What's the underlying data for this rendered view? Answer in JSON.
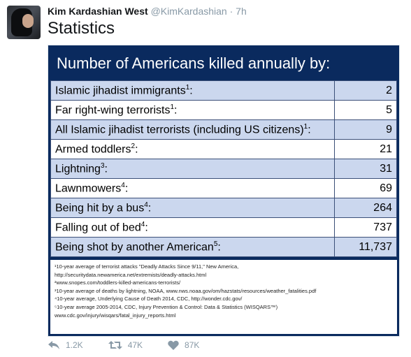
{
  "tweet": {
    "author_name": "Kim Kardashian West",
    "author_handle": "@KimKardashian",
    "separator": "·",
    "time": "7h",
    "text": "Statistics"
  },
  "image": {
    "title": "Number of Americans killed annually by:",
    "rows": [
      {
        "label": "Islamic jihadist immigrants",
        "sup": "1",
        "suffix": ":",
        "value": "2"
      },
      {
        "label": "Far right-wing terrorists",
        "sup": "1",
        "suffix": ":",
        "value": "5"
      },
      {
        "label": "All Islamic jihadist terrorists (including US citizens)",
        "sup": "1",
        "suffix": ":",
        "value": "9"
      },
      {
        "label": "Armed toddlers",
        "sup": "2",
        "suffix": ":",
        "value": "21"
      },
      {
        "label": "Lightning",
        "sup": "3",
        "suffix": ":",
        "value": "31"
      },
      {
        "label": "Lawnmowers",
        "sup": "4",
        "suffix": ":",
        "value": "69"
      },
      {
        "label": "Being hit by a bus",
        "sup": "4",
        "suffix": ":",
        "value": "264"
      },
      {
        "label": "Falling out of bed",
        "sup": "4",
        "suffix": ":",
        "value": "737"
      },
      {
        "label": "Being shot by another American",
        "sup": "5",
        "suffix": ":",
        "value": "11,737"
      }
    ],
    "footnotes": [
      "¹10-year average of terrorist attacks \"Deadly Attacks Since 9/11,\" New America,",
      "http://securitydata.newamerica.net/extremists/deadly-attacks.html",
      "²www.snopes.com/toddlers-killed-americans-terrorists/",
      "³10-year average of deaths by lightning, NOAA, www.nws.noaa.gov/om/hazstats/resources/weather_fatalities.pdf",
      "⁴10-year average, Underlying Cause of Death 2014, CDC, http://wonder.cdc.gov/",
      "⁵10-year average 2005-2014, CDC, Injury Prevention & Control: Data & Statistics (WISQARS™)",
      "www.cdc.gov/injury/wisqars/fatal_injury_reports.html"
    ]
  },
  "actions": {
    "reply_count": "1.2K",
    "retweet_count": "47K",
    "like_count": "87K"
  },
  "icons": {
    "reply": "reply-icon",
    "retweet": "retweet-icon",
    "like": "heart-icon"
  },
  "colors": {
    "panel_bg": "#0a2a5e",
    "row_alt": "#cbd7ee",
    "action_grey": "#8899a6"
  }
}
